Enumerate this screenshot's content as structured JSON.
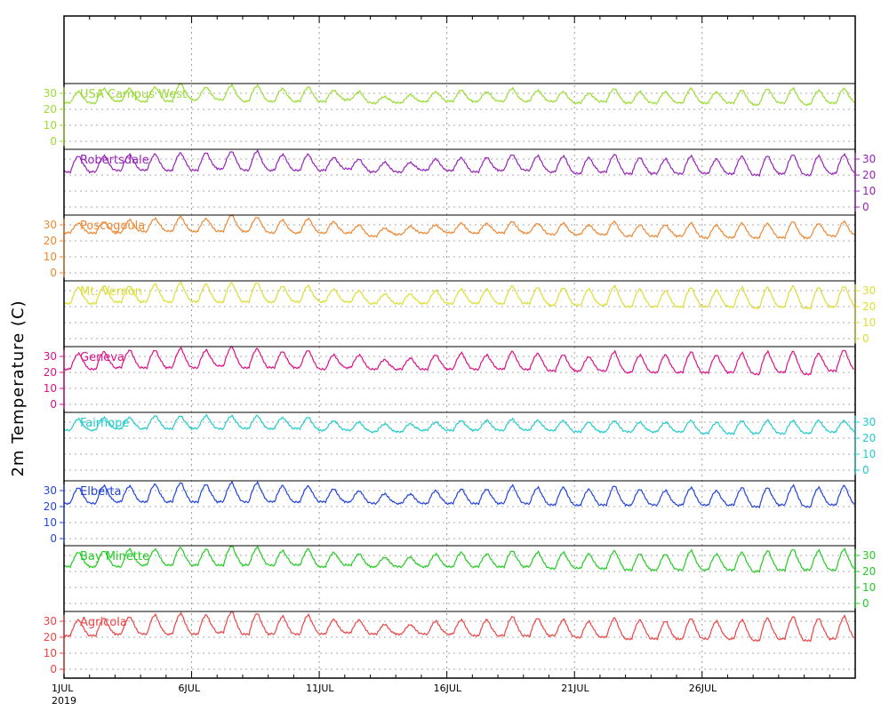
{
  "chart_data": {
    "type": "line",
    "ylabel": "2m Temperature (C)",
    "y_ticks": [
      "0",
      "10",
      "20",
      "30"
    ],
    "ylim": [
      -5,
      35
    ],
    "x_axis": {
      "ticks": [
        {
          "label": "1JUL",
          "day": 1
        },
        {
          "label": "6JUL",
          "day": 6
        },
        {
          "label": "11JUL",
          "day": 11
        },
        {
          "label": "16JUL",
          "day": 16
        },
        {
          "label": "21JUL",
          "day": 21
        },
        {
          "label": "26JUL",
          "day": 26
        }
      ],
      "year_label": "2019",
      "range_days": [
        1,
        31
      ],
      "grid": true
    },
    "grid": true,
    "series": [
      {
        "name": "USA Campus West",
        "color": "#99dd33",
        "axis_side": "left",
        "daily_max": [
          31,
          33,
          33,
          34,
          36,
          34,
          35,
          35,
          33,
          34,
          32,
          31,
          28,
          29,
          31,
          32,
          31,
          33,
          32,
          31,
          30,
          33,
          31,
          31,
          33,
          31,
          32,
          33,
          33,
          32,
          33
        ],
        "daily_min": [
          24,
          24,
          25,
          25,
          25,
          26,
          26,
          25,
          25,
          25,
          25,
          26,
          24,
          24,
          25,
          25,
          25,
          25,
          25,
          25,
          24,
          25,
          24,
          24,
          24,
          24,
          24,
          23,
          24,
          23,
          24
        ]
      },
      {
        "name": "Robertsdale",
        "color": "#9922bb",
        "axis_side": "right",
        "daily_max": [
          32,
          32,
          33,
          33,
          34,
          34,
          35,
          35,
          33,
          33,
          31,
          30,
          28,
          28,
          30,
          31,
          31,
          33,
          32,
          32,
          31,
          33,
          31,
          30,
          32,
          30,
          32,
          32,
          33,
          32,
          33
        ],
        "daily_min": [
          22,
          22,
          23,
          23,
          23,
          23,
          24,
          23,
          23,
          23,
          23,
          24,
          22,
          22,
          23,
          23,
          22,
          23,
          23,
          22,
          21,
          22,
          21,
          21,
          21,
          21,
          21,
          20,
          21,
          20,
          21
        ]
      },
      {
        "name": "Poscogoula",
        "color": "#ee8833",
        "axis_side": "left",
        "daily_max": [
          31,
          32,
          33,
          34,
          35,
          34,
          36,
          35,
          33,
          34,
          32,
          30,
          28,
          29,
          30,
          31,
          31,
          32,
          31,
          31,
          30,
          32,
          30,
          30,
          31,
          30,
          31,
          31,
          32,
          31,
          32
        ],
        "daily_min": [
          25,
          25,
          25,
          26,
          26,
          26,
          26,
          26,
          25,
          25,
          25,
          25,
          23,
          24,
          25,
          25,
          25,
          25,
          25,
          24,
          24,
          24,
          23,
          23,
          23,
          22,
          22,
          22,
          22,
          22,
          23
        ]
      },
      {
        "name": "Mt. Vernon",
        "color": "#dddd33",
        "axis_side": "right",
        "daily_max": [
          32,
          33,
          33,
          34,
          35,
          34,
          35,
          35,
          33,
          33,
          31,
          30,
          28,
          28,
          30,
          31,
          31,
          33,
          32,
          32,
          31,
          33,
          31,
          30,
          32,
          30,
          32,
          32,
          33,
          32,
          33
        ],
        "daily_min": [
          22,
          22,
          23,
          23,
          23,
          23,
          23,
          23,
          23,
          23,
          23,
          23,
          22,
          22,
          22,
          22,
          22,
          22,
          22,
          21,
          21,
          21,
          20,
          20,
          20,
          20,
          20,
          19,
          20,
          19,
          20
        ]
      },
      {
        "name": "Geneva",
        "color": "#dd1188",
        "axis_side": "left",
        "daily_max": [
          32,
          33,
          34,
          34,
          35,
          34,
          36,
          35,
          33,
          34,
          31,
          31,
          28,
          29,
          31,
          32,
          31,
          33,
          32,
          31,
          30,
          33,
          31,
          31,
          33,
          31,
          32,
          33,
          33,
          32,
          34
        ],
        "daily_min": [
          22,
          22,
          23,
          23,
          23,
          23,
          24,
          23,
          23,
          23,
          22,
          23,
          22,
          22,
          22,
          22,
          22,
          22,
          22,
          21,
          21,
          21,
          20,
          20,
          20,
          20,
          20,
          19,
          20,
          19,
          21
        ]
      },
      {
        "name": "Fairhope",
        "color": "#22cccc",
        "axis_side": "right",
        "daily_max": [
          32,
          33,
          33,
          34,
          34,
          34,
          34,
          34,
          33,
          33,
          31,
          30,
          29,
          29,
          30,
          31,
          31,
          32,
          31,
          31,
          30,
          31,
          30,
          30,
          31,
          30,
          31,
          31,
          31,
          31,
          31
        ],
        "daily_min": [
          25,
          25,
          26,
          26,
          26,
          26,
          26,
          26,
          26,
          26,
          25,
          25,
          24,
          24,
          25,
          25,
          25,
          25,
          25,
          25,
          24,
          24,
          24,
          24,
          24,
          23,
          23,
          23,
          23,
          23,
          24
        ]
      },
      {
        "name": "Elberta",
        "color": "#2244dd",
        "axis_side": "left",
        "daily_max": [
          32,
          33,
          33,
          34,
          35,
          34,
          35,
          35,
          33,
          33,
          31,
          30,
          28,
          28,
          30,
          31,
          31,
          33,
          32,
          32,
          31,
          33,
          31,
          30,
          32,
          30,
          32,
          32,
          33,
          32,
          33
        ],
        "daily_min": [
          22,
          22,
          23,
          23,
          23,
          23,
          23,
          23,
          23,
          23,
          23,
          23,
          22,
          22,
          22,
          22,
          22,
          22,
          22,
          21,
          21,
          21,
          21,
          21,
          21,
          21,
          21,
          20,
          21,
          20,
          21
        ]
      },
      {
        "name": "Bay Minette",
        "color": "#22cc22",
        "axis_side": "right",
        "daily_max": [
          32,
          33,
          34,
          34,
          35,
          34,
          36,
          35,
          33,
          34,
          32,
          31,
          29,
          29,
          31,
          32,
          31,
          33,
          32,
          32,
          31,
          33,
          31,
          31,
          33,
          31,
          32,
          33,
          34,
          33,
          34
        ],
        "daily_min": [
          23,
          23,
          23,
          24,
          24,
          24,
          24,
          24,
          24,
          24,
          23,
          24,
          23,
          23,
          23,
          23,
          23,
          23,
          23,
          22,
          22,
          22,
          21,
          21,
          21,
          21,
          21,
          20,
          21,
          21,
          21
        ]
      },
      {
        "name": "Agricola",
        "color": "#ee4444",
        "axis_side": "left",
        "daily_max": [
          31,
          32,
          33,
          34,
          35,
          34,
          36,
          35,
          33,
          34,
          31,
          31,
          28,
          28,
          30,
          31,
          31,
          33,
          32,
          31,
          30,
          32,
          31,
          30,
          32,
          30,
          31,
          32,
          33,
          32,
          33
        ],
        "daily_min": [
          21,
          21,
          22,
          22,
          22,
          22,
          23,
          22,
          22,
          22,
          22,
          23,
          22,
          22,
          22,
          22,
          21,
          21,
          21,
          21,
          20,
          20,
          19,
          19,
          19,
          19,
          19,
          18,
          19,
          18,
          19
        ]
      }
    ]
  }
}
